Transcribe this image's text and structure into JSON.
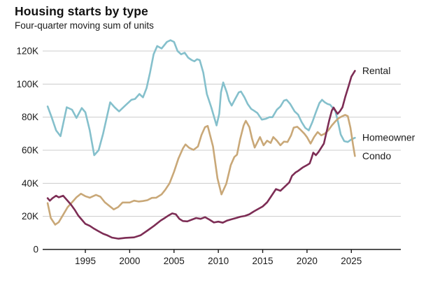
{
  "header": {
    "title": "Housing starts by type",
    "subtitle": "Four-quarter moving sum of units"
  },
  "chart_data": {
    "type": "line",
    "title": "Housing starts by type",
    "subtitle": "Four-quarter moving sum of units",
    "xlabel": "",
    "ylabel": "",
    "grid": true,
    "gridline_color": "#cccccc",
    "axis_color": "#1a1a1a",
    "text_color": "#1a1a1a",
    "legend_position": "line-end-labels",
    "xlim": [
      1990.2,
      2030.5
    ],
    "ylim": [
      0,
      130
    ],
    "x_ticks": [
      1995,
      2000,
      2005,
      2010,
      2015,
      2020,
      2025
    ],
    "y_ticks": [
      {
        "value": 0,
        "label": "0"
      },
      {
        "value": 20,
        "label": "20K"
      },
      {
        "value": 40,
        "label": "40K"
      },
      {
        "value": 60,
        "label": "60K"
      },
      {
        "value": 80,
        "label": "80K"
      },
      {
        "value": 100,
        "label": "100K"
      },
      {
        "value": 120,
        "label": "120K"
      }
    ],
    "unit": "thousands of units (K)",
    "series": [
      {
        "name": "Homeowner",
        "color": "#85c0cc",
        "points": [
          [
            1990.75,
            86.5
          ],
          [
            1991.2,
            80
          ],
          [
            1991.7,
            72
          ],
          [
            1992.2,
            68.5
          ],
          [
            1992.9,
            86
          ],
          [
            1993.5,
            84.5
          ],
          [
            1994,
            79.5
          ],
          [
            1994.6,
            85.5
          ],
          [
            1995,
            83
          ],
          [
            1995.5,
            72
          ],
          [
            1996,
            57
          ],
          [
            1996.5,
            60
          ],
          [
            1997,
            70
          ],
          [
            1997.8,
            89
          ],
          [
            1998.3,
            86
          ],
          [
            1998.8,
            83.5
          ],
          [
            1999.5,
            87
          ],
          [
            2000.2,
            90.5
          ],
          [
            2000.6,
            91
          ],
          [
            2001.1,
            94
          ],
          [
            2001.5,
            92
          ],
          [
            2001.9,
            97.5
          ],
          [
            2002.3,
            107
          ],
          [
            2002.7,
            118
          ],
          [
            2003.1,
            123
          ],
          [
            2003.6,
            121.5
          ],
          [
            2004.2,
            125.5
          ],
          [
            2004.6,
            126.5
          ],
          [
            2005,
            125.5
          ],
          [
            2005.4,
            120
          ],
          [
            2005.8,
            118
          ],
          [
            2006.2,
            119
          ],
          [
            2006.6,
            116
          ],
          [
            2007,
            114.5
          ],
          [
            2007.3,
            113.8
          ],
          [
            2007.6,
            115
          ],
          [
            2007.9,
            114.5
          ],
          [
            2008.3,
            107
          ],
          [
            2008.7,
            94
          ],
          [
            2009.2,
            86
          ],
          [
            2009.8,
            75
          ],
          [
            2010.1,
            82
          ],
          [
            2010.3,
            95
          ],
          [
            2010.55,
            101
          ],
          [
            2010.95,
            95
          ],
          [
            2011.2,
            90
          ],
          [
            2011.5,
            87
          ],
          [
            2011.9,
            91
          ],
          [
            2012.3,
            95
          ],
          [
            2012.55,
            95.5
          ],
          [
            2012.95,
            92
          ],
          [
            2013.3,
            88
          ],
          [
            2013.7,
            85
          ],
          [
            2014,
            84
          ],
          [
            2014.4,
            82.5
          ],
          [
            2014.9,
            78.5
          ],
          [
            2015.35,
            79
          ],
          [
            2015.75,
            80
          ],
          [
            2016.1,
            80
          ],
          [
            2016.6,
            84.5
          ],
          [
            2017,
            86.5
          ],
          [
            2017.4,
            90
          ],
          [
            2017.7,
            90.5
          ],
          [
            2018.1,
            88
          ],
          [
            2018.6,
            83.5
          ],
          [
            2019,
            81.5
          ],
          [
            2019.4,
            77
          ],
          [
            2019.8,
            73.5
          ],
          [
            2020.2,
            72
          ],
          [
            2020.6,
            77
          ],
          [
            2021,
            83
          ],
          [
            2021.4,
            88.5
          ],
          [
            2021.7,
            90.5
          ],
          [
            2022,
            89
          ],
          [
            2022.3,
            88
          ],
          [
            2022.6,
            87.5
          ],
          [
            2023,
            85
          ],
          [
            2023.2,
            83.5
          ],
          [
            2023.5,
            77
          ],
          [
            2023.8,
            69.5
          ],
          [
            2024.2,
            65.5
          ],
          [
            2024.6,
            65
          ],
          [
            2025,
            66.5
          ],
          [
            2025.4,
            67.5
          ]
        ]
      },
      {
        "name": "Condo",
        "color": "#c9a878",
        "points": [
          [
            1990.75,
            28
          ],
          [
            1991.1,
            19
          ],
          [
            1991.6,
            15
          ],
          [
            1992,
            16.5
          ],
          [
            1992.5,
            21
          ],
          [
            1993,
            25.5
          ],
          [
            1993.5,
            28.5
          ],
          [
            1994,
            31.5
          ],
          [
            1994.5,
            33.7
          ],
          [
            1995,
            32.2
          ],
          [
            1995.5,
            31.3
          ],
          [
            1996.2,
            33
          ],
          [
            1996.7,
            31.9
          ],
          [
            1997.2,
            28.5
          ],
          [
            1998.2,
            24.2
          ],
          [
            1998.7,
            25.6
          ],
          [
            1999.2,
            28.4
          ],
          [
            2000,
            28.4
          ],
          [
            2000.5,
            29.5
          ],
          [
            2001,
            29
          ],
          [
            2001.5,
            29.3
          ],
          [
            2002,
            29.8
          ],
          [
            2002.5,
            31.2
          ],
          [
            2003,
            31.3
          ],
          [
            2003.6,
            33.3
          ],
          [
            2004,
            36
          ],
          [
            2004.5,
            40
          ],
          [
            2005,
            47
          ],
          [
            2005.5,
            55
          ],
          [
            2006,
            61
          ],
          [
            2006.3,
            63.5
          ],
          [
            2006.7,
            61.5
          ],
          [
            2007.2,
            60.2
          ],
          [
            2007.7,
            62.3
          ],
          [
            2008.1,
            69.3
          ],
          [
            2008.5,
            74
          ],
          [
            2008.8,
            74.7
          ],
          [
            2009.4,
            62.3
          ],
          [
            2009.9,
            43
          ],
          [
            2010.35,
            33.3
          ],
          [
            2010.9,
            39.7
          ],
          [
            2011.4,
            51
          ],
          [
            2011.8,
            55.9
          ],
          [
            2012.1,
            57.3
          ],
          [
            2012.45,
            66.5
          ],
          [
            2012.85,
            75
          ],
          [
            2013.1,
            77.8
          ],
          [
            2013.5,
            74
          ],
          [
            2013.8,
            67
          ],
          [
            2014.1,
            61.6
          ],
          [
            2014.7,
            68
          ],
          [
            2015.1,
            63
          ],
          [
            2015.5,
            65.8
          ],
          [
            2015.9,
            64.4
          ],
          [
            2016.2,
            68
          ],
          [
            2016.6,
            65.8
          ],
          [
            2017,
            63
          ],
          [
            2017.4,
            65.2
          ],
          [
            2017.8,
            65
          ],
          [
            2018.2,
            69
          ],
          [
            2018.5,
            73.7
          ],
          [
            2018.9,
            74.2
          ],
          [
            2019.3,
            72.2
          ],
          [
            2019.7,
            70
          ],
          [
            2020,
            67.9
          ],
          [
            2020.4,
            64
          ],
          [
            2020.8,
            68
          ],
          [
            2021.2,
            71
          ],
          [
            2021.6,
            69
          ],
          [
            2022,
            70
          ],
          [
            2022.4,
            72
          ],
          [
            2022.8,
            75
          ],
          [
            2023.2,
            77.5
          ],
          [
            2023.6,
            79.5
          ],
          [
            2024,
            80.6
          ],
          [
            2024.3,
            81.4
          ],
          [
            2024.6,
            80.6
          ],
          [
            2024.9,
            73.6
          ],
          [
            2025.2,
            63
          ],
          [
            2025.4,
            56.5
          ]
        ]
      },
      {
        "name": "Rental",
        "color": "#7d2d55",
        "points": [
          [
            1990.75,
            31
          ],
          [
            1991,
            29.5
          ],
          [
            1991.3,
            31
          ],
          [
            1991.7,
            32.5
          ],
          [
            1992,
            31.5
          ],
          [
            1992.5,
            32.5
          ],
          [
            1993,
            29.5
          ],
          [
            1993.4,
            27
          ],
          [
            1993.8,
            24
          ],
          [
            1994.2,
            20.5
          ],
          [
            1994.6,
            18
          ],
          [
            1995,
            15.5
          ],
          [
            1995.5,
            14.3
          ],
          [
            1996,
            12.5
          ],
          [
            1996.5,
            11
          ],
          [
            1997,
            9.5
          ],
          [
            1997.5,
            8.5
          ],
          [
            1998,
            7.2
          ],
          [
            1998.75,
            6.5
          ],
          [
            1999.5,
            7
          ],
          [
            2000.5,
            7.3
          ],
          [
            2001.25,
            8.6
          ],
          [
            2002,
            11.4
          ],
          [
            2002.75,
            14.3
          ],
          [
            2003.5,
            17.5
          ],
          [
            2004,
            19.2
          ],
          [
            2004.4,
            20.6
          ],
          [
            2004.8,
            21.8
          ],
          [
            2005.2,
            21.3
          ],
          [
            2005.6,
            18.5
          ],
          [
            2006,
            17.2
          ],
          [
            2006.5,
            17
          ],
          [
            2007,
            18
          ],
          [
            2007.5,
            19
          ],
          [
            2008,
            18.5
          ],
          [
            2008.5,
            19.5
          ],
          [
            2009,
            18
          ],
          [
            2009.5,
            16.3
          ],
          [
            2010,
            16.8
          ],
          [
            2010.5,
            16.2
          ],
          [
            2011,
            17.5
          ],
          [
            2011.5,
            18.3
          ],
          [
            2012,
            19
          ],
          [
            2012.5,
            19.8
          ],
          [
            2013,
            20.3
          ],
          [
            2013.5,
            21.3
          ],
          [
            2014,
            23
          ],
          [
            2014.5,
            24.5
          ],
          [
            2015,
            26
          ],
          [
            2015.5,
            28.5
          ],
          [
            2016,
            32.5
          ],
          [
            2016.5,
            36.5
          ],
          [
            2017,
            35.5
          ],
          [
            2017.5,
            38
          ],
          [
            2018,
            40.5
          ],
          [
            2018.3,
            44.5
          ],
          [
            2018.7,
            46.5
          ],
          [
            2019,
            47.5
          ],
          [
            2019.5,
            49.5
          ],
          [
            2020,
            51
          ],
          [
            2020.3,
            52
          ],
          [
            2020.5,
            55
          ],
          [
            2020.7,
            58.5
          ],
          [
            2021,
            57
          ],
          [
            2021.3,
            59
          ],
          [
            2021.6,
            61.5
          ],
          [
            2021.9,
            64
          ],
          [
            2022.2,
            71
          ],
          [
            2022.5,
            78
          ],
          [
            2022.8,
            84
          ],
          [
            2023,
            85.8
          ],
          [
            2023.2,
            84
          ],
          [
            2023.45,
            82
          ],
          [
            2023.7,
            83.5
          ],
          [
            2024,
            86
          ],
          [
            2024.3,
            92
          ],
          [
            2024.7,
            99
          ],
          [
            2025,
            104.5
          ],
          [
            2025.4,
            108
          ]
        ]
      }
    ]
  }
}
